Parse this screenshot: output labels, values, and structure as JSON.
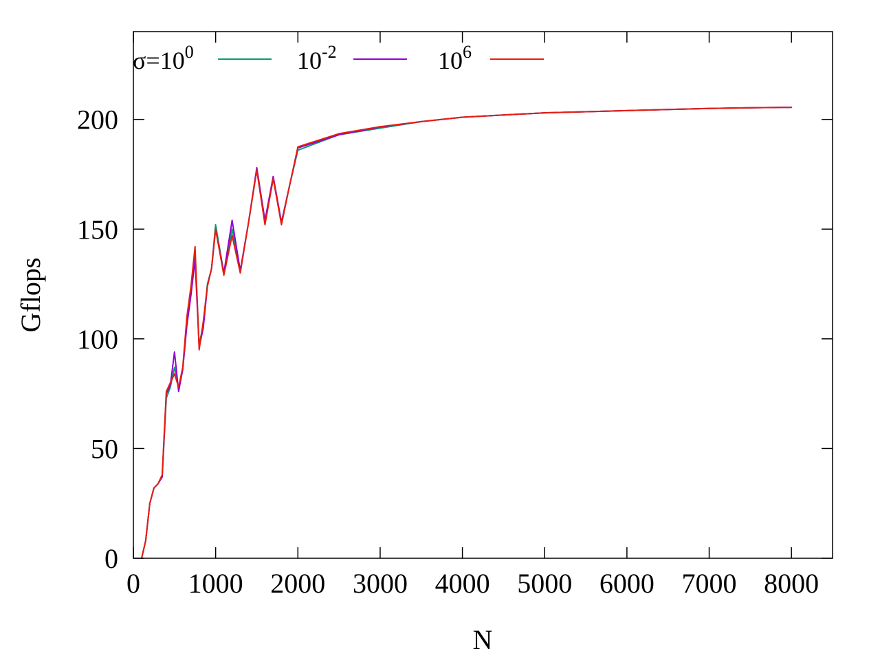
{
  "chart_data": {
    "type": "line",
    "title": "",
    "xlabel": "N",
    "ylabel": "Gflops",
    "xlim": [
      0,
      8500
    ],
    "ylim": [
      0,
      240
    ],
    "xticks": [
      0,
      1000,
      2000,
      3000,
      4000,
      5000,
      6000,
      7000,
      8000
    ],
    "yticks": [
      0,
      50,
      100,
      150,
      200
    ],
    "grid": false,
    "legend_position": "top-left",
    "legend": {
      "prefix": "σ=",
      "base": "10",
      "entries": [
        {
          "base": "10",
          "exponent": "0"
        },
        {
          "base": "10",
          "exponent": "-2"
        },
        {
          "base": "10",
          "exponent": "6"
        }
      ]
    },
    "series": [
      {
        "color": "#009e73",
        "x": [
          100,
          150,
          200,
          250,
          300,
          350,
          400,
          450,
          500,
          550,
          600,
          650,
          700,
          750,
          800,
          850,
          900,
          950,
          1000,
          1100,
          1200,
          1300,
          1400,
          1500,
          1600,
          1700,
          1800,
          1900,
          2000,
          2500,
          3000,
          3500,
          4000,
          4500,
          5000,
          5500,
          6000,
          6500,
          7000,
          7500,
          8000
        ],
        "y": [
          0,
          8,
          25,
          32,
          34,
          37,
          73,
          78,
          87,
          77,
          86,
          107,
          122,
          140,
          97,
          107,
          125,
          132,
          152,
          130,
          150,
          131,
          153,
          177,
          153,
          173,
          153,
          170,
          186,
          193,
          196,
          199,
          201,
          202,
          203,
          203.5,
          204,
          204.5,
          205,
          205.3,
          205.5
        ]
      },
      {
        "color": "#9400d3",
        "x": [
          100,
          150,
          200,
          250,
          300,
          350,
          400,
          450,
          500,
          550,
          600,
          650,
          700,
          750,
          800,
          850,
          900,
          950,
          1000,
          1100,
          1200,
          1300,
          1400,
          1500,
          1600,
          1700,
          1800,
          1900,
          2000,
          2500,
          3000,
          3500,
          4000,
          4500,
          5000,
          5500,
          6000,
          6500,
          7000,
          7500,
          8000
        ],
        "y": [
          0,
          8,
          25,
          32,
          34,
          37,
          75,
          79,
          94,
          76,
          86,
          106,
          120,
          136,
          96,
          105,
          124,
          132,
          150,
          130,
          154,
          131,
          153,
          178,
          154,
          174,
          153,
          170,
          187,
          193,
          196.5,
          199,
          201,
          202,
          203,
          203.5,
          204,
          204.5,
          205,
          205.3,
          205.5
        ]
      },
      {
        "color": "#e51e10",
        "x": [
          100,
          150,
          200,
          250,
          300,
          350,
          400,
          450,
          500,
          550,
          600,
          650,
          700,
          750,
          800,
          850,
          900,
          950,
          1000,
          1100,
          1200,
          1300,
          1400,
          1500,
          1600,
          1700,
          1800,
          1900,
          2000,
          2500,
          3000,
          3500,
          4000,
          4500,
          5000,
          5500,
          6000,
          6500,
          7000,
          7500,
          8000
        ],
        "y": [
          0,
          8,
          25,
          32,
          34,
          38,
          76,
          80,
          84,
          78,
          87,
          110,
          124,
          142,
          95,
          108,
          124,
          132,
          150,
          129,
          147,
          130,
          153,
          177,
          152,
          173,
          152,
          170,
          187.5,
          193.5,
          196.7,
          199,
          201,
          202,
          203,
          203.5,
          204,
          204.5,
          205,
          205.3,
          205.5
        ]
      }
    ]
  }
}
